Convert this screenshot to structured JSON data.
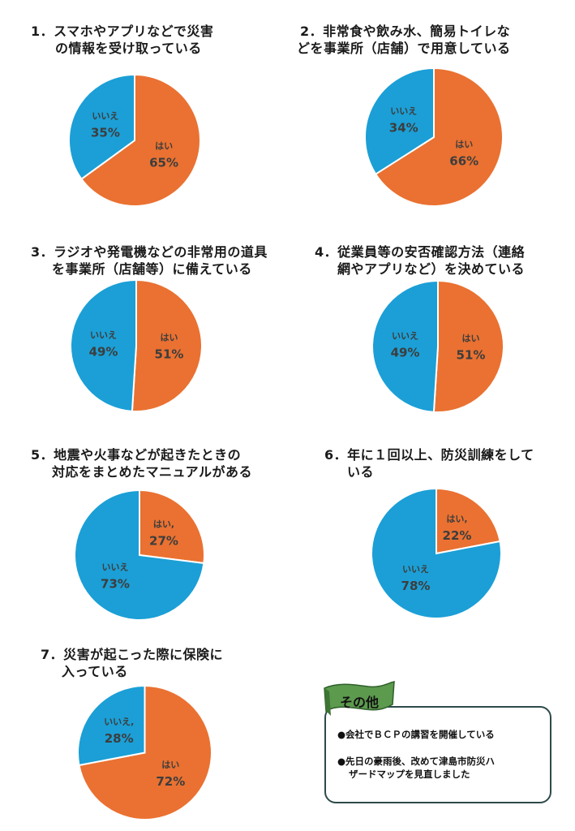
{
  "colors": {
    "yes": "#ea7131",
    "no": "#1b9fd6",
    "flag": "#5c9a4e"
  },
  "chart_data": [
    {
      "type": "pie",
      "title_lines": [
        "1．スマホやアプリなどで災害",
        "の情報を受け取っている"
      ],
      "slices": [
        {
          "label": "はい",
          "value": 65,
          "text": "65%"
        },
        {
          "label": "いいえ",
          "value": 35,
          "text": "35%"
        }
      ]
    },
    {
      "type": "pie",
      "title_lines": [
        "2．非常食や飲み水、簡易トイレな",
        "どを事業所（店舗）で用意している"
      ],
      "slices": [
        {
          "label": "はい",
          "value": 66,
          "text": "66%"
        },
        {
          "label": "いいえ",
          "value": 34,
          "text": "34%"
        }
      ]
    },
    {
      "type": "pie",
      "title_lines": [
        "3．ラジオや発電機などの非常用の道具",
        "を事業所（店舗等）に備えている"
      ],
      "slices": [
        {
          "label": "はい",
          "value": 51,
          "text": "51%"
        },
        {
          "label": "いいえ",
          "value": 49,
          "text": "49%"
        }
      ]
    },
    {
      "type": "pie",
      "title_lines": [
        "4．従業員等の安否確認方法（連絡",
        "網やアプリなど）を決めている"
      ],
      "slices": [
        {
          "label": "はい",
          "value": 51,
          "text": "51%"
        },
        {
          "label": "いいえ",
          "value": 49,
          "text": "49%"
        }
      ]
    },
    {
      "type": "pie",
      "title_lines": [
        "5．地震や火事などが起きたときの",
        "対応をまとめたマニュアルがある"
      ],
      "slices": [
        {
          "label": "はい,",
          "value": 27,
          "text": "27%"
        },
        {
          "label": "いいえ",
          "value": 73,
          "text": "73%"
        }
      ]
    },
    {
      "type": "pie",
      "title_lines": [
        "6．年に１回以上、防災訓練をして",
        "いる"
      ],
      "slices": [
        {
          "label": "はい,",
          "value": 22,
          "text": "22%"
        },
        {
          "label": "いいえ",
          "value": 78,
          "text": "78%"
        }
      ]
    },
    {
      "type": "pie",
      "title_lines": [
        "7．災害が起こった際に保険に",
        "入っている"
      ],
      "slices": [
        {
          "label": "はい",
          "value": 72,
          "text": "72%"
        },
        {
          "label": "いいえ,",
          "value": 28,
          "text": "28%"
        }
      ]
    }
  ],
  "other": {
    "title": "その他",
    "items": [
      [
        "●会社でＢＣＰの講習を開催している"
      ],
      [
        "●先日の豪雨後、改めて津島市防災ハ",
        "ザードマップを見直しました"
      ]
    ]
  }
}
